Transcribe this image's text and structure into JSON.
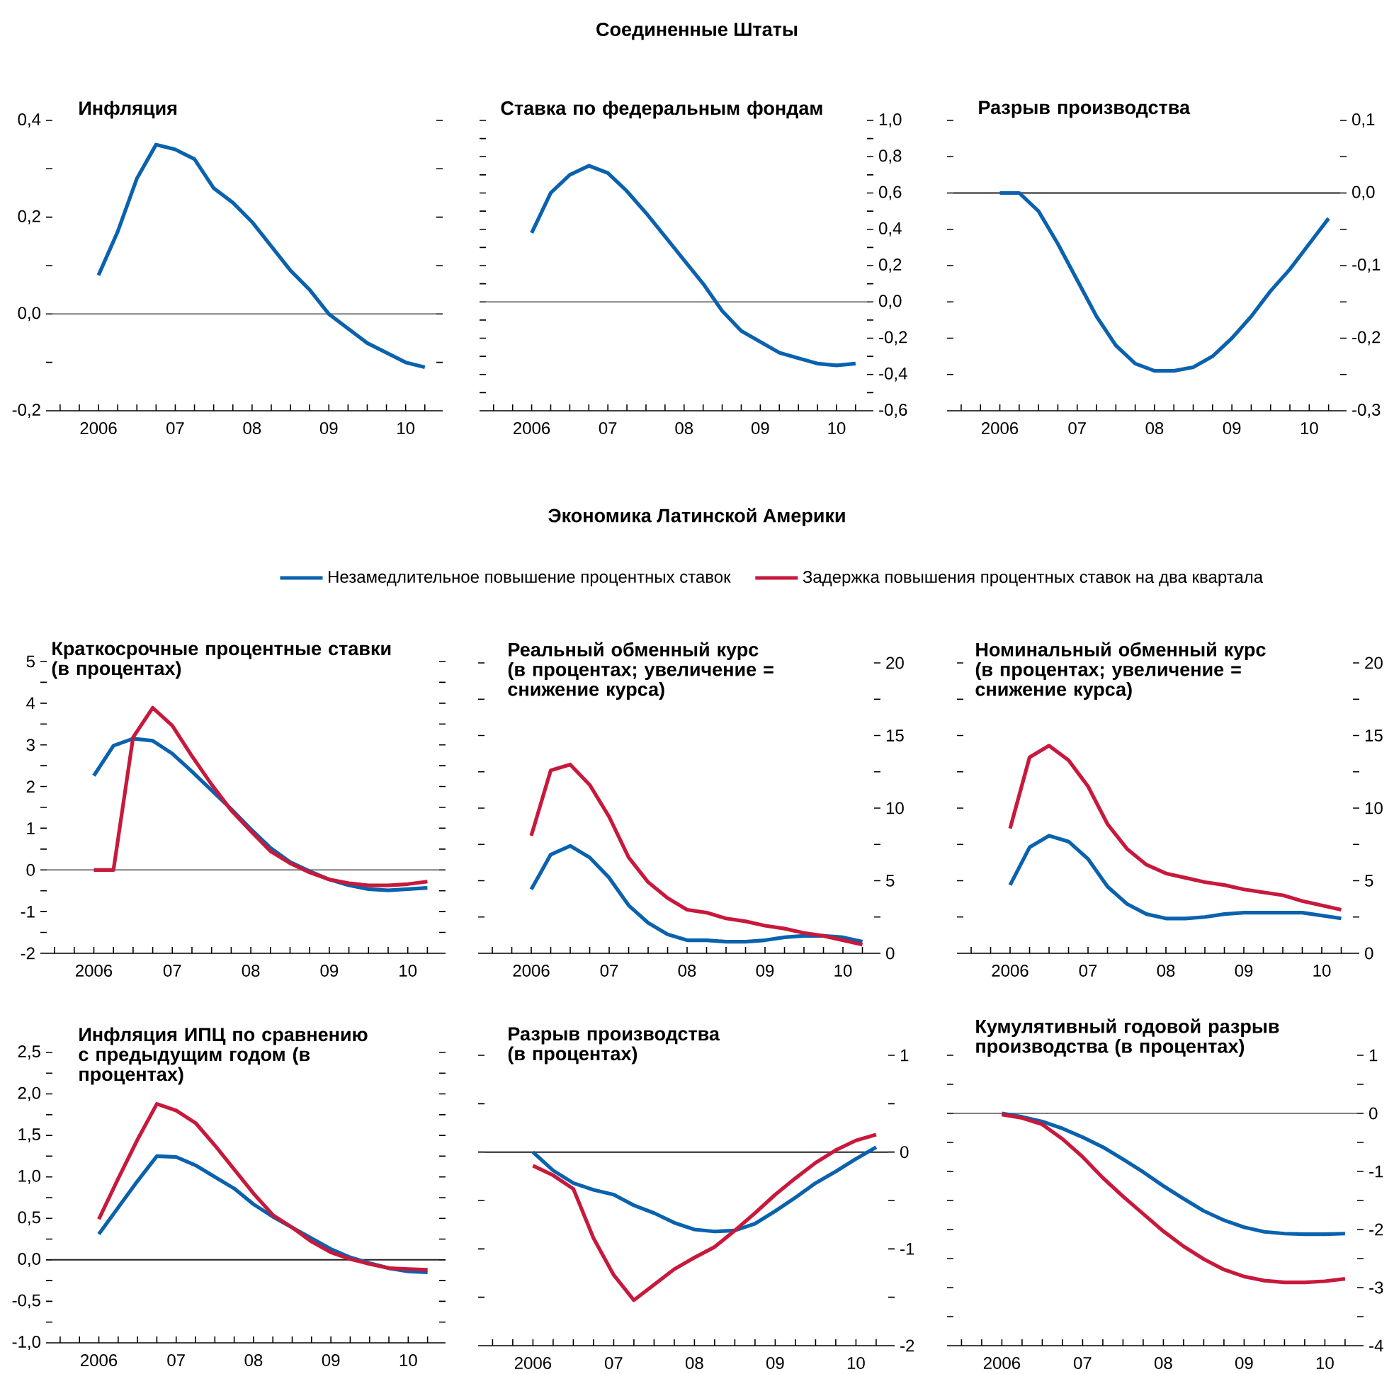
{
  "chart_data": [
    {
      "type": "line",
      "title": "Инфляция",
      "annotations": [
        "Соединенные Штаты"
      ],
      "categories": [
        "2006",
        null,
        null,
        null,
        "07",
        null,
        null,
        null,
        "08",
        null,
        null,
        null,
        "09",
        null,
        null,
        null,
        "10",
        null
      ],
      "series": [
        {
          "color": "#0a62ae",
          "values": [
            0.08,
            0.17,
            0.28,
            0.35,
            0.34,
            0.32,
            0.26,
            0.23,
            0.19,
            0.14,
            0.09,
            0.05,
            0.0,
            -0.03,
            -0.06,
            -0.08,
            -0.1,
            -0.11
          ]
        }
      ],
      "ylim": [
        -0.2,
        0.4
      ],
      "yticks": [
        {
          "value": -0.2,
          "label": "-0,2"
        },
        {
          "value": -0.1,
          "label": null
        },
        {
          "value": 0,
          "label": "0,0"
        },
        {
          "value": 0.1,
          "label": null
        },
        {
          "value": 0.2,
          "label": "0,2"
        },
        {
          "value": 0.3,
          "label": null
        },
        {
          "value": 0.4,
          "label": "0,4"
        }
      ],
      "ref_lines": [
        {
          "axis": "y",
          "value": 0,
          "color": "#7f7f7f"
        }
      ]
    },
    {
      "type": "line",
      "title": "Ставка по федеральным фондам",
      "categories": [
        "2006",
        null,
        null,
        null,
        "07",
        null,
        null,
        null,
        "08",
        null,
        null,
        null,
        "09",
        null,
        null,
        null,
        "10",
        null
      ],
      "series": [
        {
          "color": "#0a62ae",
          "values": [
            0.38,
            0.6,
            0.7,
            0.75,
            0.71,
            0.61,
            0.49,
            0.36,
            0.23,
            0.1,
            -0.05,
            -0.16,
            -0.22,
            -0.28,
            -0.31,
            -0.34,
            -0.35,
            -0.34
          ]
        }
      ],
      "ylim": [
        -0.6,
        1.0
      ],
      "yticks": [
        {
          "value": -0.6,
          "label": "-0,6"
        },
        {
          "value": -0.5,
          "label": null
        },
        {
          "value": -0.4,
          "label": "-0,4"
        },
        {
          "value": -0.3,
          "label": null
        },
        {
          "value": -0.2,
          "label": "-0,2"
        },
        {
          "value": -0.1,
          "label": null
        },
        {
          "value": 0,
          "label": "0,0"
        },
        {
          "value": 0.1,
          "label": null
        },
        {
          "value": 0.2,
          "label": "0,2"
        },
        {
          "value": 0.3,
          "label": null
        },
        {
          "value": 0.4,
          "label": "0,4"
        },
        {
          "value": 0.5,
          "label": null
        },
        {
          "value": 0.6,
          "label": "0,6"
        },
        {
          "value": 0.7,
          "label": null
        },
        {
          "value": 0.8,
          "label": "0,8"
        },
        {
          "value": 0.9,
          "label": null
        },
        {
          "value": 1.0,
          "label": "1,0"
        }
      ],
      "ref_lines": [
        {
          "axis": "y",
          "value": 0,
          "color": "#7f7f7f"
        }
      ]
    },
    {
      "type": "line",
      "title": "Разрыв производства",
      "categories": [
        "2006",
        null,
        null,
        null,
        "07",
        null,
        null,
        null,
        "08",
        null,
        null,
        null,
        "09",
        null,
        null,
        null,
        "10",
        null
      ],
      "series": [
        {
          "color": "#0a62ae",
          "values": [
            0.0,
            0.0,
            -0.025,
            -0.07,
            -0.12,
            -0.17,
            -0.21,
            -0.235,
            -0.245,
            -0.245,
            -0.24,
            -0.225,
            -0.2,
            -0.17,
            -0.135,
            -0.105,
            -0.07,
            -0.035
          ]
        }
      ],
      "ylim": [
        -0.3,
        0.1
      ],
      "yticks": [
        {
          "value": -0.3,
          "label": "-0,3"
        },
        {
          "value": -0.25,
          "label": null
        },
        {
          "value": -0.2,
          "label": "-0,2"
        },
        {
          "value": -0.15,
          "label": null
        },
        {
          "value": -0.1,
          "label": "-0,1"
        },
        {
          "value": -0.05,
          "label": null
        },
        {
          "value": 0,
          "label": "0,0"
        },
        {
          "value": 0.05,
          "label": null
        },
        {
          "value": 0.1,
          "label": "0,1"
        }
      ],
      "ref_lines": [
        {
          "axis": "y",
          "value": 0,
          "color": "#231f20"
        }
      ]
    },
    {
      "type": "line",
      "title": "Краткосрочные процентные ставки (в процентах)",
      "annotations": [
        "Экономика Латинской Америки"
      ],
      "legend": "top",
      "categories": [
        "2006",
        null,
        null,
        null,
        "07",
        null,
        null,
        null,
        "08",
        null,
        null,
        null,
        "09",
        null,
        null,
        null,
        "10",
        null
      ],
      "series": [
        {
          "name": "Незамедлительное повышение процентных ставок",
          "color": "#0a62ae",
          "values": [
            2.26,
            2.98,
            3.15,
            3.1,
            2.79,
            2.36,
            1.91,
            1.46,
            0.98,
            0.53,
            0.19,
            -0.03,
            -0.23,
            -0.37,
            -0.46,
            -0.49,
            -0.46,
            -0.43
          ]
        },
        {
          "name": "Задержка повышения процентных ставок на два квартала",
          "color": "#c8193c",
          "values": [
            0,
            0,
            3.18,
            3.89,
            3.46,
            2.73,
            2.05,
            1.43,
            0.93,
            0.45,
            0.16,
            -0.06,
            -0.23,
            -0.32,
            -0.37,
            -0.37,
            -0.34,
            -0.28
          ]
        }
      ],
      "ylim": [
        -2,
        5
      ],
      "yticks": [
        {
          "value": -2,
          "label": "-2"
        },
        {
          "value": -1.5,
          "label": null
        },
        {
          "value": -1,
          "label": "-1"
        },
        {
          "value": -0.5,
          "label": null
        },
        {
          "value": 0,
          "label": "0"
        },
        {
          "value": 0.5,
          "label": null
        },
        {
          "value": 1,
          "label": "1"
        },
        {
          "value": 1.5,
          "label": null
        },
        {
          "value": 2,
          "label": "2"
        },
        {
          "value": 2.5,
          "label": null
        },
        {
          "value": 3,
          "label": "3"
        },
        {
          "value": 3.5,
          "label": null
        },
        {
          "value": 4,
          "label": "4"
        },
        {
          "value": 4.5,
          "label": null
        },
        {
          "value": 5,
          "label": "5"
        }
      ],
      "ref_lines": [
        {
          "axis": "y",
          "value": 0,
          "color": "#7f7f7f"
        }
      ]
    },
    {
      "type": "line",
      "title": "Реальный обменный курс (в процентах; увеличение = снижение курса)",
      "categories": [
        "2006",
        null,
        null,
        null,
        "07",
        null,
        null,
        null,
        "08",
        null,
        null,
        null,
        "09",
        null,
        null,
        null,
        "10",
        null
      ],
      "series": [
        {
          "color": "#0a62ae",
          "values": [
            4.4,
            6.8,
            7.4,
            6.6,
            5.2,
            3.3,
            2.1,
            1.3,
            0.9,
            0.9,
            0.8,
            0.8,
            0.9,
            1.1,
            1.2,
            1.2,
            1.1,
            0.8
          ]
        },
        {
          "color": "#c8193c",
          "values": [
            8.1,
            12.6,
            13.0,
            11.6,
            9.4,
            6.6,
            4.9,
            3.8,
            3.0,
            2.8,
            2.4,
            2.2,
            1.9,
            1.7,
            1.4,
            1.2,
            0.9,
            0.6
          ]
        }
      ],
      "ylim": [
        0,
        20
      ],
      "yticks": [
        {
          "value": 0,
          "label": "0"
        },
        {
          "value": 2.5,
          "label": null
        },
        {
          "value": 5,
          "label": "5"
        },
        {
          "value": 7.5,
          "label": null
        },
        {
          "value": 10,
          "label": "10"
        },
        {
          "value": 12.5,
          "label": null
        },
        {
          "value": 15,
          "label": "15"
        },
        {
          "value": 17.5,
          "label": null
        },
        {
          "value": 20,
          "label": "20"
        }
      ]
    },
    {
      "type": "line",
      "title": "Номинальный обменный курс (в процентах; увеличение = снижение курса)",
      "categories": [
        "2006",
        null,
        null,
        null,
        "07",
        null,
        null,
        null,
        "08",
        null,
        null,
        null,
        "09",
        null,
        null,
        null,
        "10",
        null
      ],
      "series": [
        {
          "color": "#0a62ae",
          "values": [
            4.7,
            7.3,
            8.1,
            7.7,
            6.5,
            4.6,
            3.4,
            2.7,
            2.4,
            2.4,
            2.5,
            2.7,
            2.8,
            2.8,
            2.8,
            2.8,
            2.6,
            2.4
          ]
        },
        {
          "color": "#c8193c",
          "values": [
            8.6,
            13.5,
            14.3,
            13.3,
            11.5,
            8.9,
            7.2,
            6.1,
            5.5,
            5.2,
            4.9,
            4.7,
            4.4,
            4.2,
            4.0,
            3.6,
            3.3,
            3.0
          ]
        }
      ],
      "ylim": [
        0,
        20
      ],
      "yticks": [
        {
          "value": 0,
          "label": "0"
        },
        {
          "value": 2.5,
          "label": null
        },
        {
          "value": 5,
          "label": "5"
        },
        {
          "value": 7.5,
          "label": null
        },
        {
          "value": 10,
          "label": "10"
        },
        {
          "value": 12.5,
          "label": null
        },
        {
          "value": 15,
          "label": "15"
        },
        {
          "value": 17.5,
          "label": null
        },
        {
          "value": 20,
          "label": "20"
        }
      ]
    },
    {
      "type": "line",
      "title": "Инфляция ИПЦ по сравнению с предыдущим годом (в процентах)",
      "categories": [
        "2006",
        null,
        null,
        null,
        "07",
        null,
        null,
        null,
        "08",
        null,
        null,
        null,
        "09",
        null,
        null,
        null,
        "10",
        null
      ],
      "series": [
        {
          "color": "#0a62ae",
          "values": [
            0.31,
            0.63,
            0.95,
            1.25,
            1.24,
            1.14,
            1.0,
            0.86,
            0.67,
            0.52,
            0.39,
            0.26,
            0.13,
            0.03,
            -0.04,
            -0.1,
            -0.14,
            -0.15
          ]
        },
        {
          "color": "#c8193c",
          "values": [
            0.49,
            0.98,
            1.45,
            1.88,
            1.8,
            1.65,
            1.38,
            1.09,
            0.8,
            0.54,
            0.39,
            0.22,
            0.09,
            0.01,
            -0.05,
            -0.1,
            -0.11,
            -0.12
          ]
        }
      ],
      "ylim": [
        -1.0,
        2.5
      ],
      "yticks": [
        {
          "value": -1.0,
          "label": "-1,0"
        },
        {
          "value": -0.75,
          "label": null
        },
        {
          "value": -0.5,
          "label": "-0,5"
        },
        {
          "value": -0.25,
          "label": null
        },
        {
          "value": 0,
          "label": "0,0"
        },
        {
          "value": 0.25,
          "label": null
        },
        {
          "value": 0.5,
          "label": "0,5"
        },
        {
          "value": 0.75,
          "label": null
        },
        {
          "value": 1.0,
          "label": "1,0"
        },
        {
          "value": 1.25,
          "label": null
        },
        {
          "value": 1.5,
          "label": "1,5"
        },
        {
          "value": 1.75,
          "label": null
        },
        {
          "value": 2.0,
          "label": "2,0"
        },
        {
          "value": 2.25,
          "label": null
        },
        {
          "value": 2.5,
          "label": "2,5"
        }
      ],
      "ref_lines": [
        {
          "axis": "y",
          "value": 0,
          "color": "#231f20"
        }
      ]
    },
    {
      "type": "line",
      "title": "Разрыв производства (в процентах)",
      "categories": [
        "2006",
        null,
        null,
        null,
        "07",
        null,
        null,
        null,
        "08",
        null,
        null,
        null,
        "09",
        null,
        null,
        null,
        "10",
        null
      ],
      "series": [
        {
          "color": "#0a62ae",
          "values": [
            0,
            -0.19,
            -0.32,
            -0.39,
            -0.44,
            -0.55,
            -0.63,
            -0.73,
            -0.8,
            -0.82,
            -0.81,
            -0.74,
            -0.61,
            -0.47,
            -0.32,
            -0.2,
            -0.07,
            0.05
          ]
        },
        {
          "color": "#c8193c",
          "values": [
            -0.14,
            -0.24,
            -0.38,
            -0.89,
            -1.27,
            -1.53,
            -1.37,
            -1.21,
            -1.09,
            -0.98,
            -0.81,
            -0.63,
            -0.44,
            -0.27,
            -0.11,
            0.02,
            0.12,
            0.18
          ]
        }
      ],
      "ylim": [
        -2,
        1
      ],
      "yticks": [
        {
          "value": -2,
          "label": "-2"
        },
        {
          "value": -1.5,
          "label": null
        },
        {
          "value": -1,
          "label": "-1"
        },
        {
          "value": -0.5,
          "label": null
        },
        {
          "value": 0,
          "label": "0"
        },
        {
          "value": 0.5,
          "label": null
        },
        {
          "value": 1,
          "label": "1"
        }
      ],
      "ref_lines": [
        {
          "axis": "y",
          "value": 0,
          "color": "#231f20"
        }
      ]
    },
    {
      "type": "line",
      "title": "Кумулятивный годовой разрыв производства (в процентах)",
      "categories": [
        "2006",
        null,
        null,
        null,
        "07",
        null,
        null,
        null,
        "08",
        null,
        null,
        null,
        "09",
        null,
        null,
        null,
        "10",
        null
      ],
      "series": [
        {
          "color": "#0a62ae",
          "values": [
            0,
            -0.06,
            -0.14,
            -0.26,
            -0.41,
            -0.58,
            -0.79,
            -1.01,
            -1.25,
            -1.47,
            -1.68,
            -1.84,
            -1.96,
            -2.04,
            -2.07,
            -2.08,
            -2.08,
            -2.07
          ]
        },
        {
          "color": "#c8193c",
          "values": [
            -0.02,
            -0.08,
            -0.19,
            -0.44,
            -0.75,
            -1.11,
            -1.43,
            -1.73,
            -2.03,
            -2.29,
            -2.51,
            -2.69,
            -2.81,
            -2.88,
            -2.91,
            -2.91,
            -2.89,
            -2.85
          ]
        }
      ],
      "ylim": [
        -4,
        1
      ],
      "yticks": [
        {
          "value": -4,
          "label": "-4"
        },
        {
          "value": -3.5,
          "label": null
        },
        {
          "value": -3,
          "label": "-3"
        },
        {
          "value": -2.5,
          "label": null
        },
        {
          "value": -2,
          "label": "-2"
        },
        {
          "value": -1.5,
          "label": null
        },
        {
          "value": -1,
          "label": "-1"
        },
        {
          "value": -0.5,
          "label": null
        },
        {
          "value": 0,
          "label": "0"
        },
        {
          "value": 0.5,
          "label": null
        },
        {
          "value": 1,
          "label": "1"
        }
      ],
      "ref_lines": [
        {
          "axis": "y",
          "value": 0,
          "color": "#7f7f7f"
        }
      ]
    }
  ]
}
